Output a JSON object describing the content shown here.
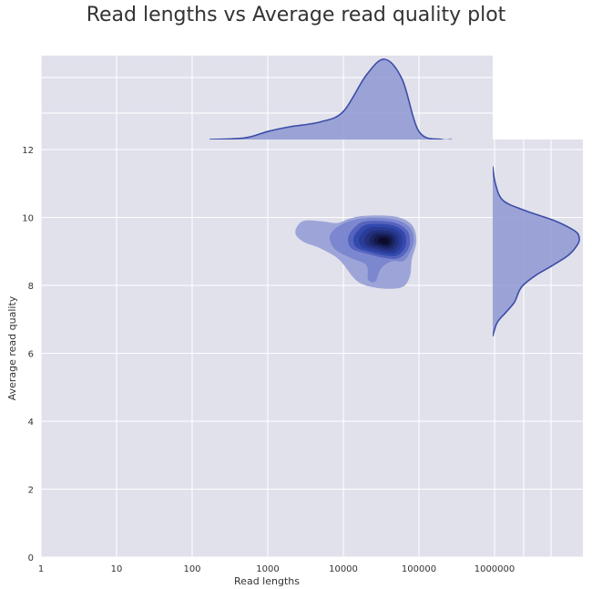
{
  "chart_data": {
    "type": "kde-joint",
    "title": "Read lengths vs Average read quality plot",
    "xlabel": "Read lengths",
    "ylabel": "Average read quality",
    "x_scale": "log",
    "xlim": [
      1,
      10000000
    ],
    "ylim": [
      0,
      12.3
    ],
    "x_ticks": [
      1,
      10,
      100,
      1000,
      10000,
      100000,
      1000000
    ],
    "x_tick_labels": [
      "1",
      "10",
      "100",
      "1000",
      "10000",
      "100000",
      "1000000"
    ],
    "y_ticks": [
      0,
      2,
      4,
      6,
      8,
      10,
      12
    ],
    "y_tick_labels": [
      "0",
      "2",
      "4",
      "6",
      "8",
      "10",
      "12"
    ],
    "grid": true,
    "background": "#e1e1ec",
    "colors": {
      "kde_levels": [
        "#9da5d8",
        "#7b87cf",
        "#5563be",
        "#3349ad",
        "#2a3c96",
        "#23307d",
        "#1a2563",
        "#14184a",
        "#0d0b2a"
      ],
      "marginal_fill": "#8e97d2",
      "marginal_line": "#3b4ea6"
    },
    "joint_density_peak": {
      "read_length": 35000,
      "average_read_quality": 9.3
    },
    "marginal_x_density": {
      "read_lengths": [
        170,
        500,
        1000,
        2000,
        5000,
        10000,
        20000,
        35000,
        60000,
        100000,
        200000,
        270000
      ],
      "density": [
        0.0,
        0.02,
        0.1,
        0.16,
        0.22,
        0.35,
        0.8,
        1.0,
        0.75,
        0.1,
        0.0,
        0.0
      ]
    },
    "marginal_y_density": {
      "average_read_quality": [
        6.5,
        6.9,
        7.2,
        7.5,
        7.8,
        8.0,
        8.3,
        8.6,
        8.9,
        9.2,
        9.4,
        9.6,
        9.9,
        10.2,
        10.5,
        11.0,
        11.5
      ],
      "density": [
        0.0,
        0.05,
        0.15,
        0.25,
        0.3,
        0.35,
        0.5,
        0.7,
        0.88,
        0.98,
        1.0,
        0.95,
        0.72,
        0.38,
        0.12,
        0.03,
        0.0
      ]
    }
  }
}
